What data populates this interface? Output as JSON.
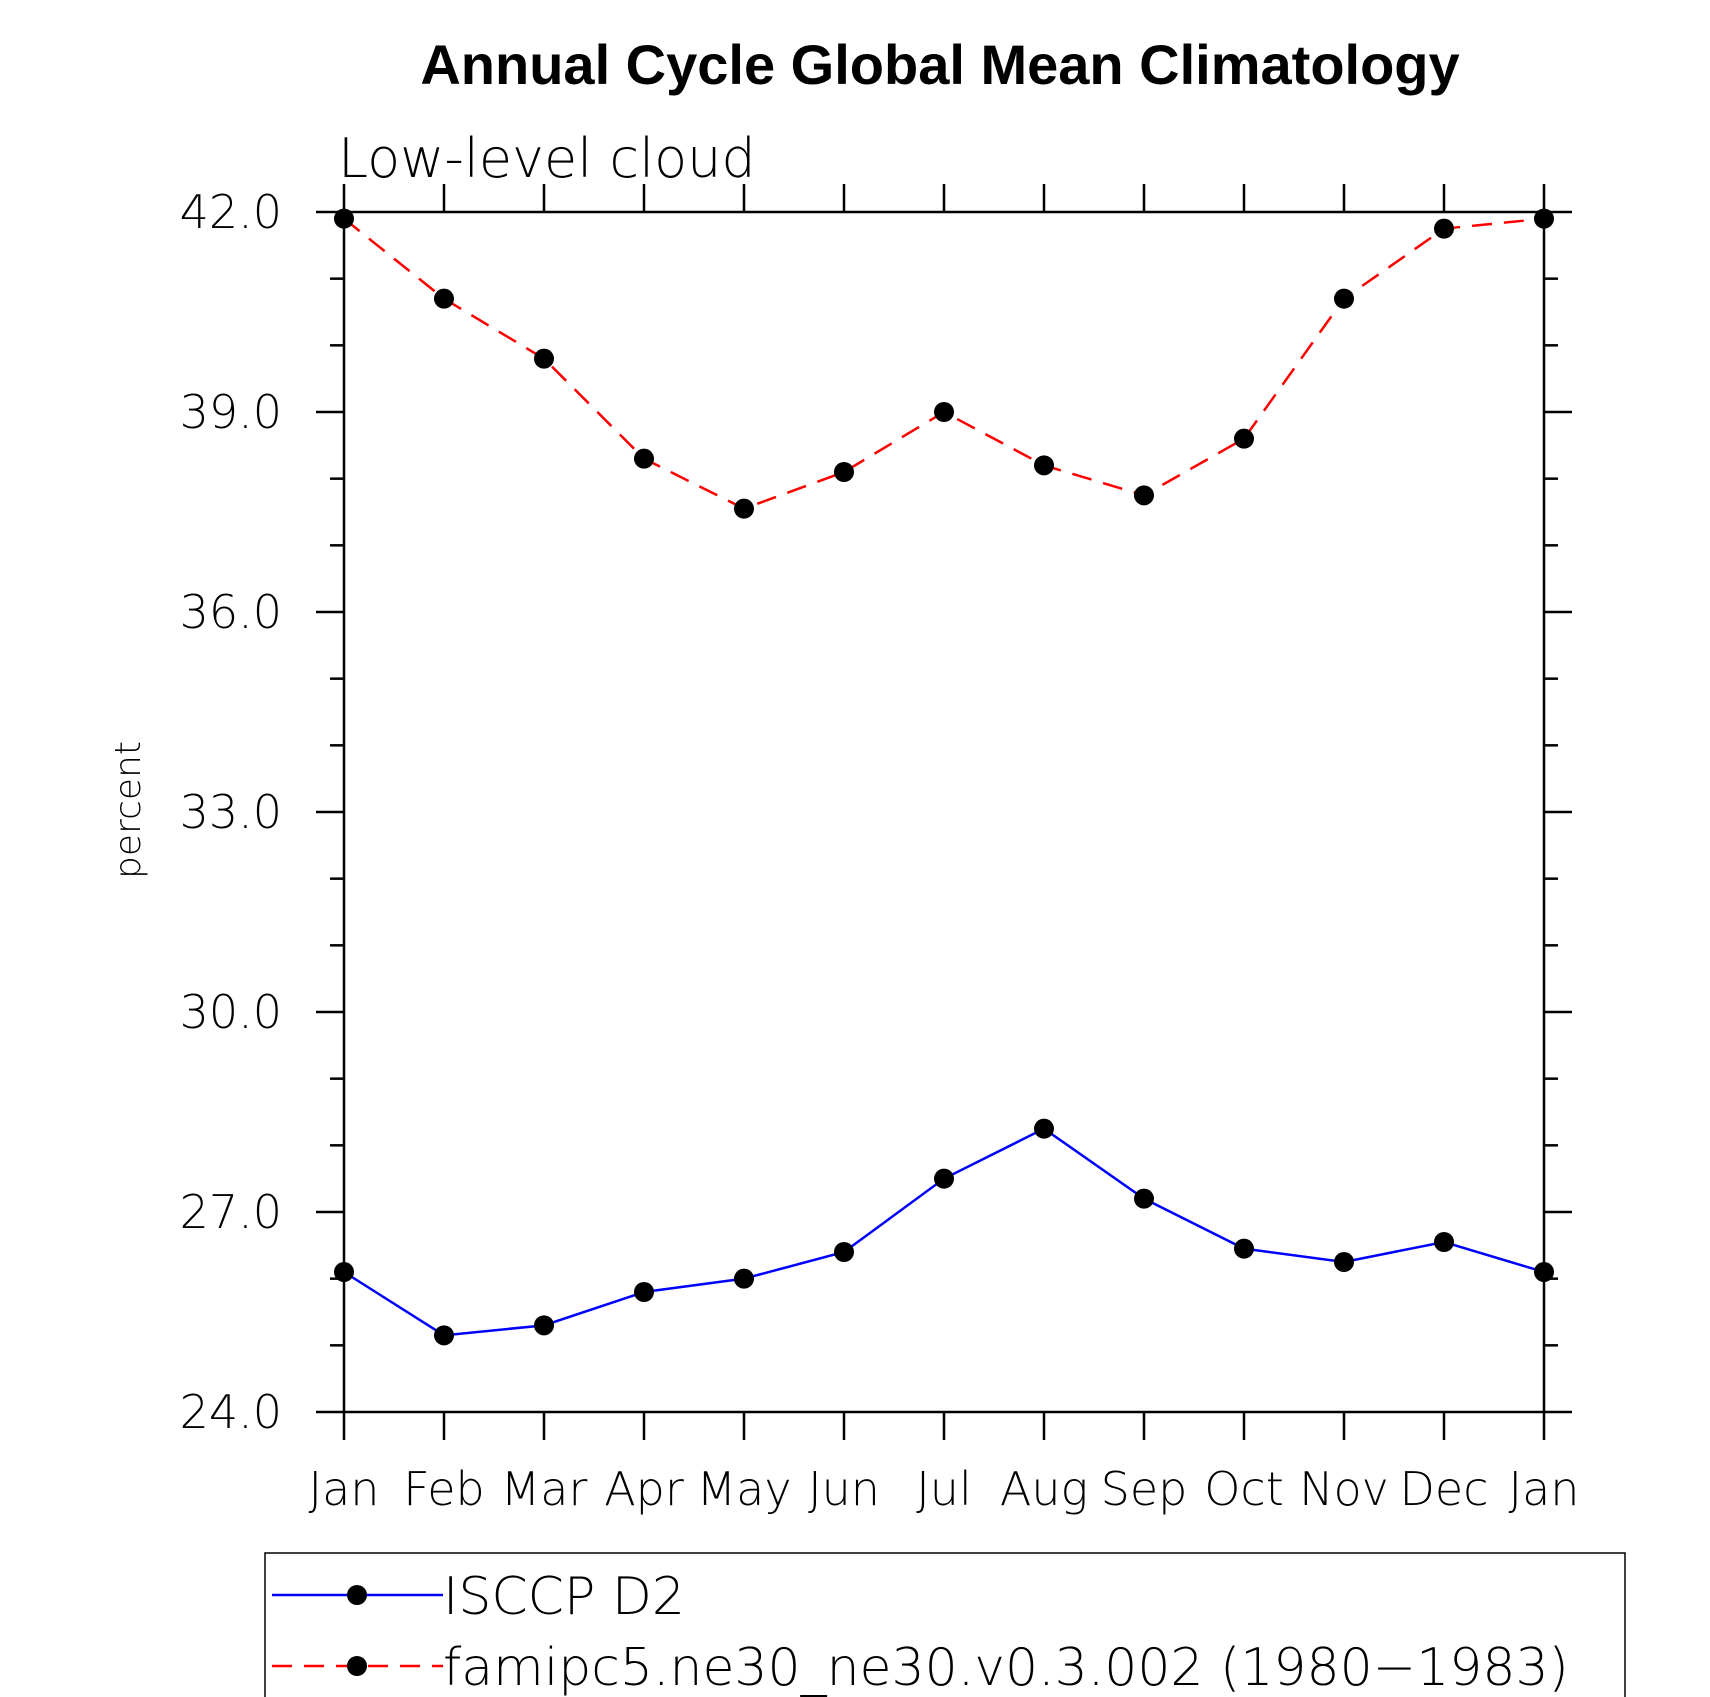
{
  "chart_data": {
    "type": "line",
    "title": "Annual Cycle Global Mean Climatology",
    "subtitle": "Low-level cloud",
    "xlabel": "",
    "ylabel": "percent",
    "ylim": [
      24.0,
      42.0
    ],
    "yticks": [
      "24.0",
      "27.0",
      "30.0",
      "33.0",
      "36.0",
      "39.0",
      "42.0"
    ],
    "categories": [
      "Jan",
      "Feb",
      "Mar",
      "Apr",
      "May",
      "Jun",
      "Jul",
      "Aug",
      "Sep",
      "Oct",
      "Nov",
      "Dec",
      "Jan"
    ],
    "grid": false,
    "legend_position": "bottom",
    "series": [
      {
        "name": "ISCCP D2",
        "color": "#0000ff",
        "dash": "solid",
        "marker": "filled-circle",
        "values": [
          26.1,
          25.15,
          25.3,
          25.8,
          26.0,
          26.4,
          27.5,
          28.25,
          27.2,
          26.45,
          26.25,
          26.55,
          26.1
        ]
      },
      {
        "name": "famipc5.ne30_ne30.v0.3.002 (1980−1983)",
        "color": "#ff0000",
        "dash": "dashed",
        "marker": "filled-circle",
        "values": [
          41.9,
          40.7,
          39.8,
          38.3,
          37.55,
          38.1,
          39.0,
          38.2,
          37.75,
          38.6,
          40.7,
          41.75,
          41.9
        ]
      }
    ]
  }
}
